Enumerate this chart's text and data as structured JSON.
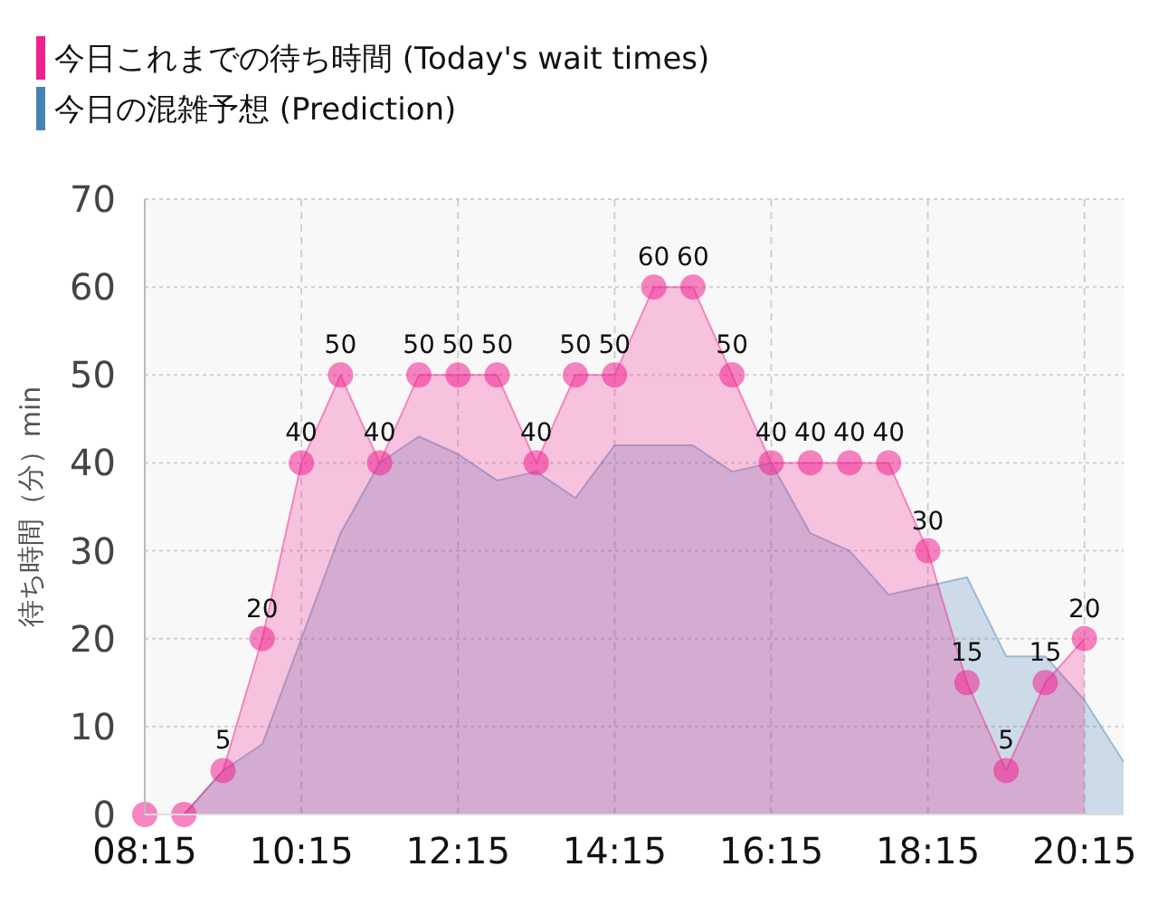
{
  "chart_data": {
    "type": "area",
    "ylabel": "待ち時間（分）min",
    "xlim": [
      8.25,
      20.75
    ],
    "xticks": [
      {
        "value": 8.25,
        "label": "08:15"
      },
      {
        "value": 10.25,
        "label": "10:15"
      },
      {
        "value": 12.25,
        "label": "12:15"
      },
      {
        "value": 14.25,
        "label": "14:15"
      },
      {
        "value": 16.25,
        "label": "16:15"
      },
      {
        "value": 18.25,
        "label": "18:15"
      },
      {
        "value": 20.25,
        "label": "20:15"
      }
    ],
    "ylim": [
      0,
      70
    ],
    "yticks": [
      0,
      10,
      20,
      30,
      40,
      50,
      60,
      70
    ],
    "grid": true,
    "legend": "top left",
    "series": [
      {
        "name": "今日の混雑予想 (Prediction)",
        "color": "#4682b4",
        "marker": "none",
        "x": [
          8.25,
          8.75,
          9.25,
          9.75,
          10.25,
          10.75,
          11.25,
          11.75,
          12.25,
          12.75,
          13.25,
          13.75,
          14.25,
          14.75,
          15.25,
          15.75,
          16.25,
          16.75,
          17.25,
          17.75,
          18.25,
          18.75,
          19.25,
          19.75,
          20.25,
          20.75
        ],
        "values": [
          0,
          0,
          5,
          8,
          20,
          32,
          40,
          43,
          41,
          38,
          39,
          36,
          42,
          42,
          42,
          39,
          40,
          32,
          30,
          25,
          26,
          27,
          18,
          18,
          13,
          6
        ]
      },
      {
        "name": "今日これまでの待ち時間 (Today's wait times)",
        "color": "#f0208f",
        "marker": "circle",
        "x": [
          8.25,
          8.75,
          9.25,
          9.75,
          10.25,
          10.75,
          11.25,
          11.75,
          12.25,
          12.75,
          13.25,
          13.75,
          14.25,
          14.75,
          15.25,
          15.75,
          16.25,
          16.75,
          17.25,
          17.75,
          18.25,
          18.75,
          19.25,
          19.75,
          20.25
        ],
        "values": [
          0,
          0,
          5,
          20,
          40,
          50,
          40,
          50,
          50,
          50,
          40,
          50,
          50,
          60,
          60,
          50,
          40,
          40,
          40,
          40,
          30,
          15,
          5,
          15,
          20
        ],
        "value_labels": [
          null,
          null,
          "5",
          "20",
          "40",
          "50",
          "40",
          "50",
          "50",
          "50",
          "40",
          "50",
          "50",
          "60",
          "60",
          "50",
          "40",
          "40",
          "40",
          "40",
          "30",
          "15",
          "5",
          "15",
          "20"
        ]
      }
    ]
  }
}
